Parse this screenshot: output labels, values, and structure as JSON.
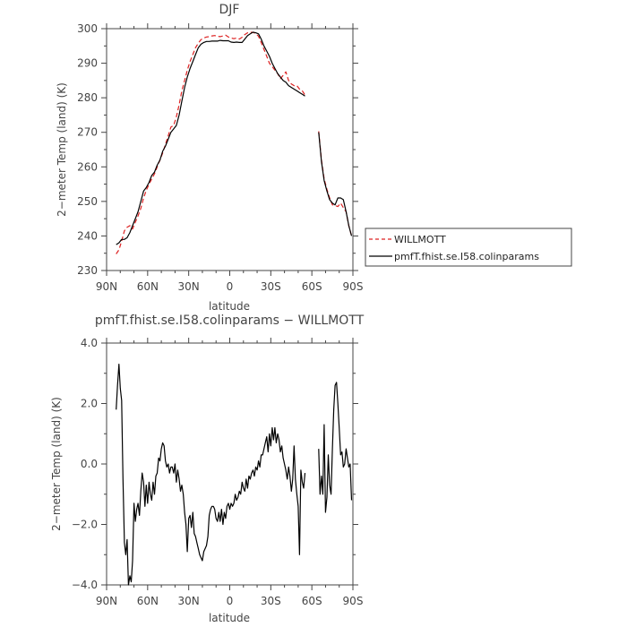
{
  "chart_data": [
    {
      "type": "line",
      "title": "DJF",
      "xlabel": "latitude",
      "ylabel": "2−meter Temp (land) (K)",
      "xlim": [
        90,
        -90
      ],
      "ylim": [
        230,
        300
      ],
      "x_ticks": [
        90,
        60,
        30,
        0,
        -30,
        -60,
        -90
      ],
      "x_tick_labels": [
        "90N",
        "60N",
        "30N",
        "0",
        "30S",
        "60S",
        "90S"
      ],
      "y_ticks": [
        230,
        240,
        250,
        260,
        270,
        280,
        290,
        300
      ],
      "y_tick_labels": [
        "230",
        "240",
        "250",
        "260",
        "270",
        "280",
        "290",
        "300"
      ],
      "legend_position": "right, outside plot",
      "series": [
        {
          "name": "WILLMOTT",
          "color": "#dd2222",
          "dash": "dashed",
          "segments": [
            {
              "x": [
                83,
                81,
                79,
                77,
                75,
                73,
                71,
                69,
                67,
                65,
                63,
                61,
                59,
                57,
                55,
                53,
                51,
                49,
                47,
                45,
                43,
                41,
                39,
                37,
                35,
                33,
                31,
                29,
                27,
                25,
                23,
                21,
                19,
                17,
                15,
                13,
                11,
                9,
                7,
                5,
                3,
                1,
                -1,
                -3,
                -5,
                -7,
                -9,
                -11,
                -13,
                -15,
                -17,
                -19,
                -21,
                -23,
                -25,
                -27,
                -29,
                -31,
                -33,
                -35,
                -37,
                -39,
                -41,
                -43,
                -45,
                -47,
                -49,
                -51,
                -53,
                -55
              ],
              "y": [
                234.8,
                236.0,
                238.5,
                241.5,
                242.5,
                243.0,
                242.0,
                244.0,
                245.8,
                248.0,
                251.0,
                253.2,
                255.0,
                256.5,
                258.0,
                260.0,
                262.0,
                264.0,
                266.5,
                269.0,
                271.5,
                272.0,
                274.5,
                278.0,
                282.0,
                285.0,
                288.0,
                290.5,
                292.5,
                294.5,
                295.8,
                296.8,
                297.3,
                297.6,
                297.7,
                297.9,
                298.0,
                297.8,
                297.7,
                297.9,
                298.1,
                297.6,
                297.3,
                297.1,
                297.3,
                297.0,
                297.5,
                298.3,
                298.8,
                299.0,
                298.9,
                298.6,
                297.8,
                296.0,
                294.0,
                292.0,
                290.0,
                289.0,
                288.0,
                287.0,
                285.5,
                286.5,
                287.5,
                285.0,
                284.0,
                283.5,
                283.5,
                282.5,
                282.0,
                280.8
              ]
            },
            {
              "x": [
                -65,
                -67,
                -69,
                -71,
                -73,
                -75,
                -77,
                -79,
                -81,
                -83,
                -85,
                -87,
                -89
              ],
              "y": [
                270.3,
                262.0,
                256.5,
                253.5,
                251.0,
                249.0,
                248.8,
                248.5,
                249.5,
                248.2,
                247.0,
                243.0,
                240.0
              ]
            }
          ]
        },
        {
          "name": "pmfT.fhist.se.I58.colinparams",
          "color": "#000000",
          "dash": "solid",
          "segments": [
            {
              "x": [
                83,
                81,
                79,
                77,
                75,
                73,
                71,
                69,
                67,
                65,
                63,
                61,
                59,
                57,
                55,
                53,
                51,
                49,
                47,
                45,
                43,
                41,
                39,
                37,
                35,
                33,
                31,
                29,
                27,
                25,
                23,
                21,
                19,
                17,
                15,
                13,
                11,
                9,
                7,
                5,
                3,
                1,
                -1,
                -3,
                -5,
                -7,
                -9,
                -11,
                -13,
                -15,
                -17,
                -19,
                -21,
                -23,
                -25,
                -27,
                -29,
                -31,
                -33,
                -35,
                -37,
                -39,
                -41,
                -43,
                -45,
                -47,
                -49,
                -51,
                -53,
                -55
              ],
              "y": [
                237.5,
                238.0,
                239.0,
                239.0,
                239.5,
                241.0,
                243.0,
                245.0,
                247.0,
                250.0,
                253.0,
                254.0,
                255.5,
                257.5,
                258.5,
                260.5,
                262.0,
                264.5,
                266.0,
                268.0,
                270.0,
                271.0,
                272.0,
                275.0,
                279.0,
                283.0,
                286.0,
                288.5,
                290.5,
                292.5,
                294.5,
                295.5,
                296.0,
                296.3,
                296.3,
                296.4,
                296.4,
                296.4,
                296.6,
                296.5,
                296.5,
                296.5,
                296.1,
                296.0,
                296.1,
                296.0,
                296.0,
                297.0,
                298.0,
                298.5,
                299.0,
                298.8,
                298.5,
                297.0,
                295.0,
                293.5,
                292.0,
                290.0,
                288.5,
                287.0,
                286.0,
                285.0,
                284.5,
                283.5,
                283.0,
                282.5,
                282.0,
                281.5,
                281.0,
                280.5
              ]
            },
            {
              "x": [
                -65,
                -67,
                -69,
                -71,
                -73,
                -75,
                -77,
                -79,
                -81,
                -83,
                -85,
                -87,
                -89
              ],
              "y": [
                270.0,
                261.5,
                256.0,
                253.0,
                250.5,
                249.5,
                249.0,
                251.0,
                251.0,
                250.5,
                247.0,
                243.0,
                240.0
              ]
            }
          ]
        }
      ],
      "legend": {
        "entries": [
          "WILLMOTT",
          "pmfT.fhist.se.I58.colinparams"
        ]
      }
    },
    {
      "type": "line",
      "title": "pmfT.fhist.se.I58.colinparams − WILLMOTT",
      "xlabel": "latitude",
      "ylabel": "2−meter Temp (land) (K)",
      "xlim": [
        90,
        -90
      ],
      "ylim": [
        -4.0,
        4.0
      ],
      "x_ticks": [
        90,
        60,
        30,
        0,
        -30,
        -60,
        -90
      ],
      "x_tick_labels": [
        "90N",
        "60N",
        "30N",
        "0",
        "30S",
        "60S",
        "90S"
      ],
      "y_ticks": [
        -4,
        -2,
        0,
        2,
        4
      ],
      "y_tick_labels": [
        "−4.0",
        "−2.0",
        "0.0",
        "2.0",
        "4.0"
      ],
      "series": [
        {
          "color": "#000000",
          "dash": "solid",
          "segments": [
            {
              "x": [
                83,
                82,
                81,
                80,
                79,
                78,
                77,
                76,
                75,
                74,
                73,
                72,
                71,
                70,
                69,
                68,
                67,
                66,
                65,
                64,
                63,
                62,
                61,
                60,
                59,
                58,
                57,
                56,
                55,
                54,
                53,
                52,
                51,
                50,
                49,
                48,
                47,
                46,
                45,
                44,
                43,
                42,
                41,
                40,
                39,
                38,
                37,
                36,
                35,
                34,
                33,
                32,
                31,
                30,
                29,
                28,
                27,
                26,
                25,
                24,
                23,
                22,
                21,
                20,
                19,
                18,
                17,
                16,
                15,
                14,
                13,
                12,
                11,
                10,
                9,
                8,
                7,
                6,
                5,
                4,
                3,
                2,
                1,
                0,
                -1,
                -2,
                -3,
                -4,
                -5,
                -6,
                -7,
                -8,
                -9,
                -10,
                -11,
                -12,
                -13,
                -14,
                -15,
                -16,
                -17,
                -18,
                -19,
                -20,
                -21,
                -22,
                -23,
                -24,
                -25,
                -26,
                -27,
                -28,
                -29,
                -30,
                -31,
                -32,
                -33,
                -34,
                -35,
                -36,
                -37,
                -38,
                -39,
                -40,
                -41,
                -42,
                -43,
                -44,
                -45,
                -46,
                -47,
                -48,
                -49,
                -50,
                -51,
                -52,
                -53,
                -54,
                -55
              ],
              "y": [
                1.8,
                2.6,
                3.3,
                2.5,
                2.1,
                -0.5,
                -2.6,
                -3.0,
                -2.5,
                -4.0,
                -3.7,
                -3.9,
                -3.2,
                -1.3,
                -1.9,
                -1.5,
                -1.3,
                -1.7,
                -0.9,
                -0.3,
                -0.6,
                -1.4,
                -0.7,
                -1.3,
                -0.6,
                -1.0,
                -1.2,
                -0.6,
                -1.0,
                -0.4,
                -0.3,
                0.2,
                0.1,
                0.5,
                0.7,
                0.6,
                0.1,
                -0.1,
                0.0,
                -0.3,
                -0.1,
                -0.1,
                -0.3,
                0.0,
                -0.6,
                -0.2,
                -0.5,
                -0.9,
                -0.7,
                -1.0,
                -1.6,
                -2.0,
                -2.9,
                -1.8,
                -1.7,
                -2.1,
                -1.6,
                -2.3,
                -2.4,
                -2.6,
                -2.8,
                -3.0,
                -3.1,
                -3.2,
                -2.9,
                -2.8,
                -2.7,
                -2.4,
                -1.7,
                -1.5,
                -1.4,
                -1.4,
                -1.5,
                -1.8,
                -1.9,
                -1.6,
                -1.9,
                -1.5,
                -2.0,
                -1.6,
                -1.8,
                -1.4,
                -1.3,
                -1.5,
                -1.3,
                -1.4,
                -1.3,
                -1.0,
                -1.2,
                -1.1,
                -0.9,
                -1.0,
                -0.6,
                -0.8,
                -0.9,
                -0.5,
                -0.8,
                -0.4,
                -0.5,
                -0.3,
                -0.2,
                -0.4,
                -0.1,
                -0.2,
                0.1,
                -0.1,
                0.3,
                0.3,
                0.5,
                0.7,
                0.9,
                0.4,
                1.0,
                0.6,
                1.2,
                0.8,
                1.2,
                0.7,
                1.0,
                0.8,
                0.4,
                0.6,
                0.2,
                0.0,
                -0.2,
                -0.5,
                -0.1,
                -0.4,
                -0.9,
                -0.5,
                0.6,
                -0.5,
                -1.0,
                -1.4,
                -3.0,
                -0.2,
                -0.6,
                -0.8,
                -0.3
              ]
            },
            {
              "x": [
                -65,
                -66,
                -67,
                -68,
                -69,
                -70,
                -71,
                -72,
                -73,
                -74,
                -75,
                -76,
                -77,
                -78,
                -79,
                -80,
                -81,
                -82,
                -83,
                -84,
                -85,
                -86,
                -87,
                -88,
                -89
              ],
              "y": [
                0.5,
                -1.0,
                -0.4,
                -1.0,
                1.3,
                -1.6,
                -1.1,
                0.3,
                -0.7,
                -1.0,
                0.5,
                1.8,
                2.6,
                2.7,
                2.0,
                1.2,
                0.3,
                0.4,
                -0.1,
                0.0,
                0.5,
                0.2,
                -0.1,
                0.0,
                -1.2
              ]
            }
          ]
        }
      ]
    }
  ]
}
